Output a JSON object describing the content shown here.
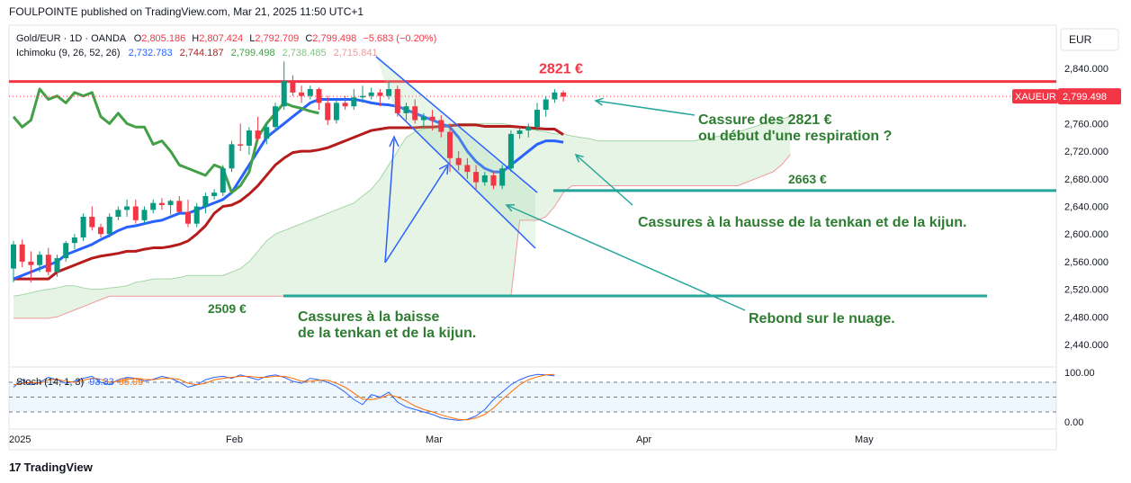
{
  "header": {
    "publisher": "FOULPOINTE published on TradingView.com, Mar 21, 2025 11:50 UTC+1"
  },
  "footer": {
    "brand": "TradingView",
    "logo_mark": "17"
  },
  "currency_button": "EUR",
  "chart_data": {
    "type": "candlestick",
    "symbol": "Gold/EUR · 1D · OANDA",
    "ohlc": {
      "O_label": "O",
      "O": "2,805.186",
      "H_label": "H",
      "H": "2,807.424",
      "L_label": "L",
      "L": "2,792.709",
      "C_label": "C",
      "C": "2,799.498",
      "change": "−5.683 (−0.20%)"
    },
    "ichimoku": {
      "label": "Ichimoku (9, 26, 52, 26)",
      "values": [
        "2,732.783",
        "2,744.187",
        "2,799.498",
        "2,738.485",
        "2,715.841"
      ],
      "colors": [
        "#2962ff",
        "#b71c1c",
        "#43a047",
        "#81c784",
        "#ef9a9a"
      ]
    },
    "price_axis": {
      "ticks": [
        "2,840.000",
        "2,800.000",
        "2,760.000",
        "2,720.000",
        "2,680.000",
        "2,640.000",
        "2,600.000",
        "2,560.000",
        "2,520.000",
        "2,480.000",
        "2,440.000"
      ],
      "ylim": [
        2425,
        2870
      ]
    },
    "current_price": {
      "symbol": "XAUEUR",
      "value": "2,799.498",
      "num": 2799.498
    },
    "time_axis": {
      "ticks": [
        "2025",
        "Feb",
        "Mar",
        "Apr",
        "May"
      ]
    },
    "candles": [
      [
        2550,
        2590,
        2530,
        2585
      ],
      [
        2585,
        2592,
        2552,
        2560
      ],
      [
        2560,
        2575,
        2530,
        2555
      ],
      [
        2555,
        2575,
        2545,
        2570
      ],
      [
        2570,
        2580,
        2540,
        2545
      ],
      [
        2545,
        2570,
        2538,
        2565
      ],
      [
        2565,
        2590,
        2560,
        2587
      ],
      [
        2587,
        2600,
        2578,
        2595
      ],
      [
        2595,
        2630,
        2590,
        2625
      ],
      [
        2625,
        2640,
        2605,
        2610
      ],
      [
        2610,
        2615,
        2595,
        2600
      ],
      [
        2600,
        2630,
        2595,
        2625
      ],
      [
        2625,
        2640,
        2620,
        2635
      ],
      [
        2635,
        2650,
        2625,
        2640
      ],
      [
        2640,
        2650,
        2615,
        2620
      ],
      [
        2620,
        2640,
        2615,
        2635
      ],
      [
        2635,
        2650,
        2630,
        2645
      ],
      [
        2645,
        2652,
        2635,
        2642
      ],
      [
        2642,
        2650,
        2628,
        2648
      ],
      [
        2648,
        2655,
        2630,
        2632
      ],
      [
        2632,
        2650,
        2610,
        2615
      ],
      [
        2615,
        2645,
        2610,
        2640
      ],
      [
        2640,
        2660,
        2630,
        2655
      ],
      [
        2655,
        2665,
        2650,
        2660
      ],
      [
        2660,
        2700,
        2655,
        2695
      ],
      [
        2695,
        2735,
        2690,
        2730
      ],
      [
        2730,
        2760,
        2720,
        2728
      ],
      [
        2728,
        2755,
        2715,
        2750
      ],
      [
        2750,
        2770,
        2735,
        2738
      ],
      [
        2738,
        2760,
        2730,
        2755
      ],
      [
        2755,
        2790,
        2748,
        2785
      ],
      [
        2785,
        2850,
        2780,
        2822
      ],
      [
        2822,
        2830,
        2800,
        2805
      ],
      [
        2805,
        2815,
        2790,
        2800
      ],
      [
        2800,
        2815,
        2795,
        2810
      ],
      [
        2810,
        2812,
        2780,
        2790
      ],
      [
        2790,
        2800,
        2758,
        2765
      ],
      [
        2765,
        2795,
        2760,
        2790
      ],
      [
        2790,
        2800,
        2780,
        2785
      ],
      [
        2785,
        2810,
        2780,
        2798
      ],
      [
        2798,
        2815,
        2790,
        2800
      ],
      [
        2800,
        2812,
        2795,
        2805
      ],
      [
        2805,
        2810,
        2785,
        2800
      ],
      [
        2800,
        2820,
        2795,
        2810
      ],
      [
        2810,
        2815,
        2770,
        2775
      ],
      [
        2775,
        2790,
        2765,
        2785
      ],
      [
        2785,
        2795,
        2760,
        2765
      ],
      [
        2765,
        2775,
        2755,
        2770
      ],
      [
        2770,
        2780,
        2750,
        2765
      ],
      [
        2765,
        2772,
        2740,
        2748
      ],
      [
        2748,
        2760,
        2690,
        2710
      ],
      [
        2710,
        2720,
        2692,
        2700
      ],
      [
        2700,
        2710,
        2680,
        2690
      ],
      [
        2690,
        2700,
        2665,
        2675
      ],
      [
        2675,
        2690,
        2670,
        2685
      ],
      [
        2685,
        2690,
        2665,
        2670
      ],
      [
        2670,
        2700,
        2665,
        2695
      ],
      [
        2695,
        2750,
        2690,
        2745
      ],
      [
        2745,
        2755,
        2738,
        2750
      ],
      [
        2750,
        2760,
        2740,
        2755
      ],
      [
        2755,
        2790,
        2750,
        2780
      ],
      [
        2780,
        2800,
        2770,
        2795
      ],
      [
        2795,
        2810,
        2790,
        2805
      ],
      [
        2805,
        2808,
        2792,
        2799
      ]
    ],
    "tenkan": [
      2535,
      2540,
      2545,
      2550,
      2555,
      2560,
      2570,
      2575,
      2580,
      2585,
      2592,
      2598,
      2605,
      2610,
      2612,
      2615,
      2618,
      2620,
      2625,
      2630,
      2630,
      2635,
      2640,
      2645,
      2650,
      2660,
      2680,
      2700,
      2720,
      2740,
      2750,
      2760,
      2770,
      2780,
      2790,
      2795,
      2795,
      2795,
      2795,
      2795,
      2793,
      2790,
      2788,
      2787,
      2785,
      2780,
      2775,
      2770,
      2765,
      2760,
      2755,
      2740,
      2720,
      2705,
      2695,
      2690,
      2690,
      2700,
      2710,
      2720,
      2730,
      2735,
      2735,
      2733
    ],
    "kijun": [
      2535,
      2535,
      2535,
      2535,
      2535,
      2545,
      2550,
      2555,
      2560,
      2565,
      2568,
      2570,
      2572,
      2575,
      2575,
      2578,
      2580,
      2580,
      2582,
      2585,
      2590,
      2600,
      2612,
      2630,
      2640,
      2642,
      2648,
      2658,
      2670,
      2685,
      2700,
      2710,
      2718,
      2720,
      2720,
      2722,
      2725,
      2730,
      2735,
      2740,
      2745,
      2750,
      2752,
      2754,
      2754,
      2754,
      2754,
      2755,
      2755,
      2756,
      2757,
      2758,
      2758,
      2758,
      2756,
      2756,
      2756,
      2756,
      2755,
      2754,
      2753,
      2752,
      2752,
      2744
    ],
    "chikou": [
      2770,
      2755,
      2765,
      2810,
      2795,
      2800,
      2790,
      2805,
      2800,
      2805,
      2770,
      2760,
      2775,
      2760,
      2755,
      2755,
      2730,
      2735,
      2720,
      2700,
      2695,
      2690,
      2685,
      2700,
      2695,
      2660,
      2670,
      2690,
      2740,
      2760,
      2775,
      2790,
      2785,
      2782,
      2778,
      2775
    ],
    "span_a": [
      2510,
      2512,
      2515,
      2518,
      2520,
      2522,
      2525,
      2525,
      2522,
      2520,
      2520,
      2522,
      2523,
      2525,
      2530,
      2532,
      2535,
      2535,
      2535,
      2537,
      2540,
      2540,
      2540,
      2540,
      2540,
      2545,
      2550,
      2560,
      2575,
      2590,
      2600,
      2605,
      2610,
      2615,
      2620,
      2625,
      2630,
      2635,
      2640,
      2645,
      2655,
      2665,
      2680,
      2700,
      2720,
      2740,
      2748,
      2752,
      2755,
      2758,
      2759,
      2760,
      2760,
      2760,
      2760,
      2760,
      2760,
      2758,
      2755,
      2752,
      2750,
      2748,
      2745,
      2745,
      2742,
      2740,
      2738,
      2735,
      2735,
      2735,
      2735,
      2735,
      2735,
      2735,
      2735,
      2735,
      2735,
      2735,
      2735,
      2738,
      2740,
      2742,
      2745,
      2748,
      2752,
      2756,
      2760,
      2764,
      2767,
      2770
    ],
    "span_b": [
      2478,
      2478,
      2478,
      2478,
      2478,
      2480,
      2485,
      2490,
      2495,
      2500,
      2505,
      2510,
      2510,
      2510,
      2510,
      2510,
      2510,
      2510,
      2510,
      2510,
      2510,
      2510,
      2510,
      2510,
      2510,
      2510,
      2510,
      2510,
      2510,
      2510,
      2510,
      2510,
      2510,
      2510,
      2510,
      2510,
      2510,
      2510,
      2510,
      2510,
      2510,
      2510,
      2510,
      2510,
      2510,
      2510,
      2510,
      2510,
      2510,
      2510,
      2510,
      2510,
      2510,
      2510,
      2510,
      2510,
      2510,
      2510,
      2620,
      2620,
      2620,
      2625,
      2640,
      2660,
      2670,
      2670,
      2670,
      2670,
      2670,
      2670,
      2670,
      2670,
      2670,
      2670,
      2670,
      2670,
      2670,
      2670,
      2670,
      2670,
      2670,
      2670,
      2670,
      2670,
      2675,
      2680,
      2685,
      2690,
      2700,
      2715
    ],
    "levels": [
      {
        "label": "2821 €",
        "value": 2821,
        "color": "#f23645"
      },
      {
        "label": "2663 €",
        "value": 2663,
        "color": "#26a69a"
      },
      {
        "label": "2509 €",
        "value": 2509,
        "color": "#26a69a"
      }
    ],
    "annotations": {
      "a1": "Cassure des 2821 €",
      "a2": "ou début d'une respiration ?",
      "a3": "Cassures à la hausse de la tenkan et de la kijun.",
      "a4": "Rebond sur le nuage.",
      "a5": "Cassures à la baisse",
      "a6": "de la tenkan et de la kijun."
    },
    "stoch": {
      "label": "Stoch (14, 1, 3)",
      "k_value": "93.33",
      "d_value": "95.99",
      "ticks": [
        "100.00",
        "0.00"
      ],
      "k": [
        70,
        85,
        75,
        80,
        90,
        85,
        78,
        82,
        88,
        92,
        80,
        75,
        85,
        90,
        88,
        82,
        86,
        92,
        88,
        80,
        70,
        75,
        85,
        90,
        92,
        88,
        95,
        90,
        85,
        92,
        95,
        90,
        82,
        78,
        88,
        85,
        80,
        72,
        60,
        45,
        35,
        55,
        50,
        60,
        40,
        30,
        25,
        20,
        15,
        8,
        5,
        3,
        5,
        12,
        25,
        45,
        60,
        75,
        85,
        92,
        96,
        95,
        93
      ],
      "d": [
        75,
        78,
        80,
        78,
        85,
        86,
        82,
        80,
        84,
        88,
        86,
        80,
        82,
        86,
        88,
        86,
        85,
        88,
        88,
        86,
        78,
        75,
        78,
        85,
        88,
        90,
        92,
        92,
        90,
        90,
        92,
        92,
        88,
        82,
        82,
        84,
        84,
        78,
        70,
        58,
        46,
        45,
        48,
        55,
        50,
        42,
        32,
        25,
        20,
        14,
        9,
        5,
        4,
        8,
        15,
        28,
        45,
        60,
        75,
        85,
        91,
        95,
        96
      ]
    }
  }
}
